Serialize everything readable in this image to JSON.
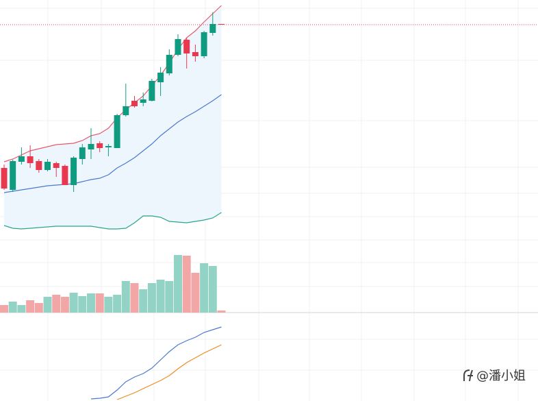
{
  "chart_data": [
    {
      "type": "candlestick",
      "ylim": [
        0,
        345
      ],
      "up_color": "#0f9b7f",
      "down_color": "#e8384f",
      "open": [
        100,
        68,
        109,
        117,
        110,
        97,
        107,
        103,
        75,
        113,
        127,
        136,
        130,
        129,
        177,
        198,
        195,
        198,
        225,
        238,
        265,
        287,
        269,
        263,
        297,
        310
      ],
      "close": [
        70,
        110,
        117,
        107,
        97,
        109,
        100,
        75,
        115,
        130,
        135,
        129,
        132,
        177,
        190,
        190,
        200,
        227,
        239,
        265,
        288,
        267,
        263,
        298,
        310,
        309
      ],
      "high": [
        105,
        112,
        130,
        133,
        113,
        113,
        109,
        105,
        117,
        135,
        158,
        139,
        135,
        179,
        223,
        205,
        210,
        230,
        247,
        273,
        295,
        290,
        280,
        300,
        327,
        310
      ],
      "low": [
        68,
        65,
        105,
        100,
        93,
        95,
        87,
        75,
        65,
        105,
        113,
        123,
        117,
        129,
        175,
        188,
        190,
        197,
        205,
        235,
        263,
        245,
        255,
        260,
        293,
        309
      ],
      "last_price": 309,
      "last_price_color": "#e8384f",
      "band_fill": "#eef6fd",
      "series": [
        {
          "color": "#e8596a",
          "values": [
            109,
            113,
            119,
            125,
            128,
            131,
            134,
            135,
            136,
            140,
            147,
            150,
            158,
            173,
            185,
            195,
            205,
            220,
            235,
            253,
            273,
            290,
            300,
            313,
            325,
            337
          ]
        },
        {
          "color": "#4a78d0",
          "values": [
            64,
            66,
            68,
            70,
            72,
            74,
            75,
            76,
            77,
            80,
            83,
            85,
            90,
            100,
            107,
            115,
            125,
            135,
            147,
            157,
            167,
            175,
            182,
            190,
            198,
            207
          ]
        },
        {
          "color": "#2aa58a",
          "values": [
            16,
            12,
            11,
            12,
            13,
            14,
            15,
            15,
            15,
            15,
            15,
            13,
            11,
            11,
            12,
            20,
            30,
            30,
            28,
            22,
            21,
            20,
            22,
            24,
            27,
            35
          ]
        }
      ]
    },
    {
      "type": "bar",
      "ylim": [
        0,
        96
      ],
      "up_color": "#93d3c6",
      "down_color": "#f3a6a6",
      "values": [
        11,
        16,
        11,
        18,
        14,
        23,
        26,
        23,
        29,
        24,
        28,
        28,
        23,
        26,
        46,
        43,
        34,
        43,
        48,
        46,
        84,
        83,
        58,
        72,
        68,
        3
      ]
    },
    {
      "type": "line",
      "ylim": [
        0,
        129
      ],
      "series": [
        {
          "color": "#4a78d0",
          "values": [
            null,
            null,
            null,
            null,
            null,
            null,
            null,
            null,
            null,
            null,
            3,
            4,
            6,
            16,
            28,
            35,
            40,
            48,
            60,
            72,
            82,
            88,
            93,
            100,
            104,
            108
          ]
        },
        {
          "color": "#f08a24",
          "values": [
            null,
            null,
            null,
            null,
            null,
            null,
            null,
            null,
            null,
            null,
            null,
            null,
            null,
            2,
            7,
            12,
            18,
            24,
            30,
            37,
            47,
            56,
            63,
            70,
            76,
            82
          ]
        }
      ]
    }
  ],
  "watermark": "@潘小姐"
}
